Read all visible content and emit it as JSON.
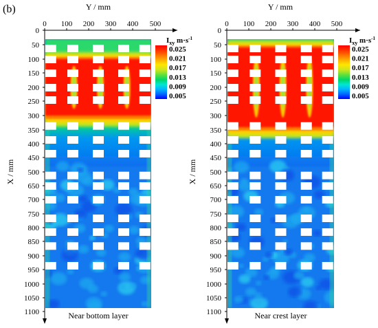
{
  "figure_label": "(b)",
  "colors": {
    "scale": [
      "#0000ff",
      "#0066ff",
      "#00b4ff",
      "#00e6d2",
      "#00d86a",
      "#5fe03c",
      "#c8e61e",
      "#ffe600",
      "#ffa000",
      "#ff4600",
      "#ff0000"
    ],
    "obstacle": "#ffffff",
    "axis": "#000000"
  },
  "chart_data": [
    {
      "type": "heatmap",
      "label": "Near bottom layer",
      "xlabel": "Y / mm",
      "ylabel": "X / mm",
      "x_ticks": [
        0,
        100,
        200,
        300,
        400,
        500
      ],
      "y_ticks": [
        0,
        50,
        100,
        150,
        200,
        250,
        300,
        350,
        400,
        450,
        500,
        650,
        700,
        750,
        800,
        850,
        900,
        950,
        1000,
        1050,
        1100
      ],
      "colorbar": {
        "title": "I",
        "title_sub": "xy",
        "unit": "m·s",
        "unit_sup": "-1",
        "ticks": [
          "0.025",
          "0.021",
          "0.017",
          "0.013",
          "0.009",
          "0.005"
        ]
      },
      "high_region": {
        "x_from": 100,
        "x_to": 300,
        "value": "0.025+"
      }
    },
    {
      "type": "heatmap",
      "label": "Near crest layer",
      "xlabel": "Y / mm",
      "ylabel": "X / mm",
      "x_ticks": [
        0,
        100,
        200,
        300,
        400,
        500
      ],
      "y_ticks": [
        0,
        50,
        100,
        150,
        200,
        250,
        300,
        350,
        400,
        450,
        500,
        650,
        700,
        750,
        800,
        850,
        900,
        950,
        1000,
        1050,
        1100
      ],
      "colorbar": {
        "title": "I",
        "title_sub": "xy",
        "unit": "m·s",
        "unit_sup": "-1",
        "ticks": [
          "0.025",
          "0.021",
          "0.017",
          "0.013",
          "0.009",
          "0.005"
        ]
      },
      "high_region": {
        "x_from": 60,
        "x_to": 340,
        "value": "0.025+"
      }
    }
  ]
}
